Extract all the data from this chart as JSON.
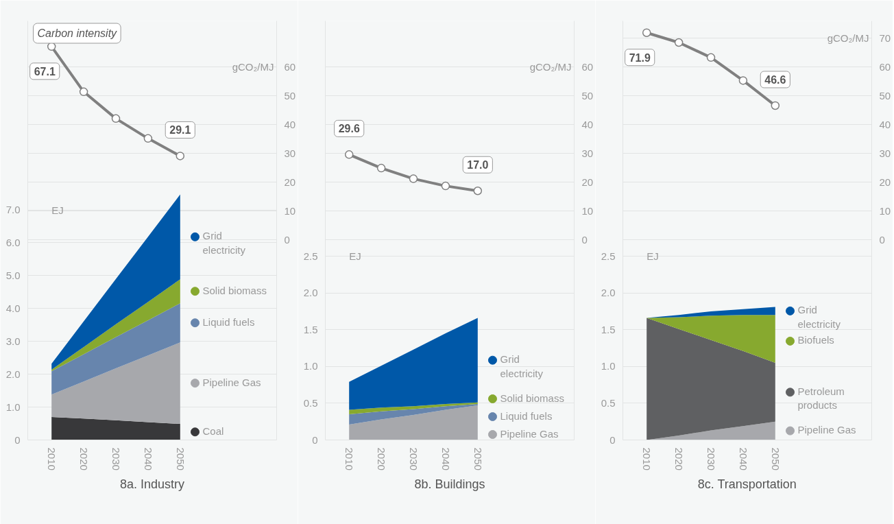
{
  "chart_data": [
    {
      "type": "area",
      "title": "8a. Industry",
      "annotations": [
        "Carbon intensity"
      ],
      "ylabel": "EJ",
      "y2label": "gCO₂/MJ",
      "x": [
        2010,
        2020,
        2030,
        2040,
        2050
      ],
      "xlim": [
        2002.6,
        2080
      ],
      "xticks": [
        2010,
        2020,
        2030,
        2040,
        2050
      ],
      "ylim": [
        0,
        12.75
      ],
      "yticks": [
        0,
        {
          "value": 1,
          "label": "1.0"
        },
        {
          "value": 2,
          "label": "2.0"
        },
        {
          "value": 3,
          "label": "3.0"
        },
        {
          "value": 4,
          "label": "4.0"
        },
        {
          "value": 5,
          "label": "5.0"
        },
        {
          "value": 6,
          "label": "6.0"
        },
        {
          "value": 7,
          "label": "7.0"
        }
      ],
      "y2lim": [
        -69.5,
        76
      ],
      "y2ticks": [
        0,
        10,
        20,
        30,
        40,
        50,
        60
      ],
      "stacked": true,
      "grid": "y",
      "legend": "right",
      "series": [
        {
          "name": "Coal",
          "color": "#38383a",
          "values": [
            0.7,
            0.65,
            0.6,
            0.54,
            0.49
          ]
        },
        {
          "name": "Pipeline Gas",
          "color": "#a7a8ac",
          "values": [
            0.68,
            1.13,
            1.58,
            2.03,
            2.48
          ]
        },
        {
          "name": "Liquid fuels",
          "color": "#6785ad",
          "values": [
            0.71,
            0.83,
            0.95,
            1.07,
            1.19
          ]
        },
        {
          "name": "Solid biomass",
          "color": "#87a92f",
          "values": [
            0.05,
            0.22,
            0.39,
            0.56,
            0.73
          ]
        },
        {
          "name": "Grid electricity",
          "color": "#0058a8",
          "values": [
            0.18,
            0.78,
            1.38,
            1.98,
            2.58
          ]
        },
        {
          "type": "line",
          "axis": "y2",
          "color": "#808080",
          "marker": "circle",
          "values": [
            67.1,
            51.4,
            42.1,
            35.2,
            29.1
          ],
          "value_labels": [
            "67.1",
            null,
            null,
            null,
            "29.1"
          ]
        }
      ]
    },
    {
      "type": "area",
      "title": "8b. Buildings",
      "ylabel": "EJ",
      "y2label": "gCO₂/MJ",
      "x": [
        2010,
        2020,
        2030,
        2040,
        2050
      ],
      "xlim": [
        2002.6,
        2080
      ],
      "xticks": [
        2010,
        2020,
        2030,
        2040,
        2050
      ],
      "ylim": [
        0,
        5.7
      ],
      "yticks": [
        0,
        0.5,
        {
          "value": 1,
          "label": "1.0"
        },
        1.5,
        {
          "value": 2,
          "label": "2.0"
        },
        2.5
      ],
      "y2lim": [
        -69.5,
        76
      ],
      "y2ticks": [
        0,
        10,
        20,
        30,
        40,
        50,
        60
      ],
      "stacked": true,
      "grid": "y",
      "legend": "right",
      "series": [
        {
          "name": "Pipeline Gas",
          "color": "#a7a8ac",
          "values": [
            0.21,
            0.28,
            0.34,
            0.41,
            0.47
          ]
        },
        {
          "name": "Liquid fuels",
          "color": "#6785ad",
          "values": [
            0.14,
            0.11,
            0.08,
            0.05,
            0.02
          ]
        },
        {
          "name": "Solid biomass",
          "color": "#87a92f",
          "values": [
            0.06,
            0.05,
            0.04,
            0.03,
            0.02
          ]
        },
        {
          "name": "Grid electricity",
          "color": "#0058a8",
          "values": [
            0.38,
            0.57,
            0.77,
            0.96,
            1.15
          ]
        },
        {
          "type": "line",
          "axis": "y2",
          "color": "#808080",
          "marker": "circle",
          "values": [
            29.6,
            24.9,
            21.2,
            18.7,
            17.0
          ],
          "value_labels": [
            "29.6",
            null,
            null,
            null,
            "17.0"
          ]
        }
      ]
    },
    {
      "type": "area",
      "title": "8c. Transportation",
      "ylabel": "EJ",
      "y2label": "gCO₂/MJ",
      "x": [
        2010,
        2020,
        2030,
        2040,
        2050
      ],
      "xlim": [
        2002.6,
        2080
      ],
      "xticks": [
        2010,
        2020,
        2030,
        2040,
        2050
      ],
      "ylim": [
        0,
        5.7
      ],
      "yticks": [
        0,
        0.5,
        {
          "value": 1,
          "label": "1.0"
        },
        1.5,
        {
          "value": 2,
          "label": "2.0"
        },
        2.5
      ],
      "y2lim": [
        -69.5,
        76
      ],
      "y2ticks": [
        0,
        10,
        20,
        30,
        40,
        50,
        60,
        70
      ],
      "stacked": true,
      "grid": "y",
      "legend": "right",
      "series": [
        {
          "name": "Pipeline Gas",
          "color": "#a7a8ac",
          "values": [
            0,
            0.06,
            0.13,
            0.19,
            0.25
          ]
        },
        {
          "name": "Petroleum products",
          "color": "#5f6062",
          "values": [
            1.66,
            1.45,
            1.23,
            1.02,
            0.8
          ]
        },
        {
          "name": "Biofuels",
          "color": "#87a92f",
          "values": [
            0,
            0.16,
            0.33,
            0.49,
            0.65
          ]
        },
        {
          "name": "Grid electricity",
          "color": "#0058a8",
          "values": [
            0,
            0.03,
            0.06,
            0.08,
            0.11
          ]
        },
        {
          "type": "line",
          "axis": "y2",
          "color": "#808080",
          "marker": "circle",
          "values": [
            71.9,
            68.5,
            63.3,
            55.3,
            46.6
          ],
          "value_labels": [
            "71.9",
            null,
            null,
            null,
            "46.6"
          ]
        }
      ]
    }
  ]
}
